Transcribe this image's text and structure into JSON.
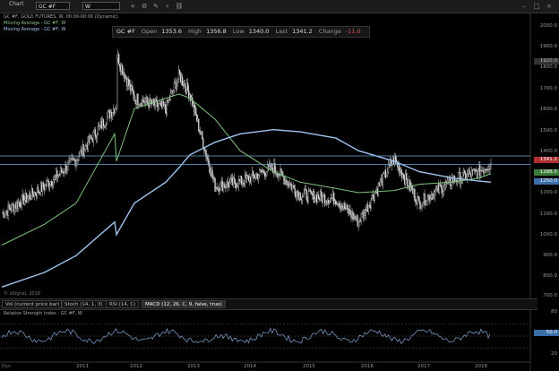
{
  "titlebar": {
    "app_name": "Chart",
    "symbol": "GC #F",
    "period": "W"
  },
  "legend": [
    "GC #F, GOLD FUTURES, W, 00:00-00:00 (Dynamic)",
    "Moving Average - GC #F, W",
    "Moving Average - GC #F, W"
  ],
  "quote": {
    "symbol": "GC #F",
    "open_label": "Open",
    "open": "1353.6",
    "high_label": "High",
    "high": "1356.8",
    "low_label": "Low",
    "low": "1340.0",
    "last_label": "Last",
    "last": "1341.2",
    "change_label": "Change",
    "change": "-11.0"
  },
  "y_axis_labels": [
    "2000.0",
    "1900.0",
    "1800.0",
    "1700.0",
    "1600.0",
    "1500.0",
    "1400.0",
    "1300.0",
    "1200.0",
    "1100.0",
    "1000.0",
    "900.0",
    "800.0",
    "700.0"
  ],
  "price_tags": {
    "last": "1341.2",
    "ma50": "1288.5",
    "ma200": "1250.0",
    "top_marker": "1920.0"
  },
  "rsi_axis_labels": [
    "80",
    "50.0",
    "20"
  ],
  "watermark": "© eSignal, 2018",
  "tabs": [
    "Vol (current price bar)",
    "Stoch (14, 1, 3)",
    "RSI (14, C)",
    "MACD (12, 26, C, 9, false, true)"
  ],
  "rsi_legend": "Relative Strength Index - GC #F, W",
  "x_axis_labels": [
    "2011",
    "2012",
    "2013",
    "2014",
    "2015",
    "2016",
    "2017",
    "2018"
  ],
  "corner_label": "Dyn",
  "chart_data": {
    "type": "candlestick",
    "title": "GC #F, GOLD FUTURES, W",
    "x": [
      "2010-01",
      "2010-07",
      "2011-01",
      "2011-07",
      "2011-09",
      "2012-01",
      "2012-07",
      "2012-10",
      "2013-01",
      "2013-06",
      "2013-12",
      "2014-06",
      "2014-12",
      "2015-06",
      "2015-12",
      "2016-07",
      "2016-12",
      "2017-06",
      "2017-12",
      "2018-01"
    ],
    "close": [
      1100,
      1230,
      1360,
      1620,
      1850,
      1650,
      1600,
      1760,
      1670,
      1230,
      1250,
      1320,
      1190,
      1170,
      1060,
      1360,
      1150,
      1260,
      1300,
      1341
    ],
    "ma50": [
      950,
      1050,
      1150,
      1350,
      1480,
      1600,
      1650,
      1670,
      1650,
      1550,
      1400,
      1300,
      1250,
      1220,
      1200,
      1210,
      1240,
      1250,
      1270,
      1290
    ],
    "ma200": [
      750,
      820,
      900,
      1000,
      1060,
      1150,
      1250,
      1320,
      1380,
      1440,
      1480,
      1500,
      1490,
      1460,
      1400,
      1350,
      1300,
      1270,
      1255,
      1250
    ],
    "horizontal_levels": [
      1375,
      1335
    ],
    "rsi_levels": [
      80,
      50,
      20
    ],
    "ylim": [
      700,
      2050
    ],
    "colors": {
      "candle": "#d8d8d8",
      "ma50": "#7ec47a",
      "ma200": "#9fc4f0",
      "level": "#6fa8dc",
      "rsi": "#7fa7d8"
    }
  }
}
